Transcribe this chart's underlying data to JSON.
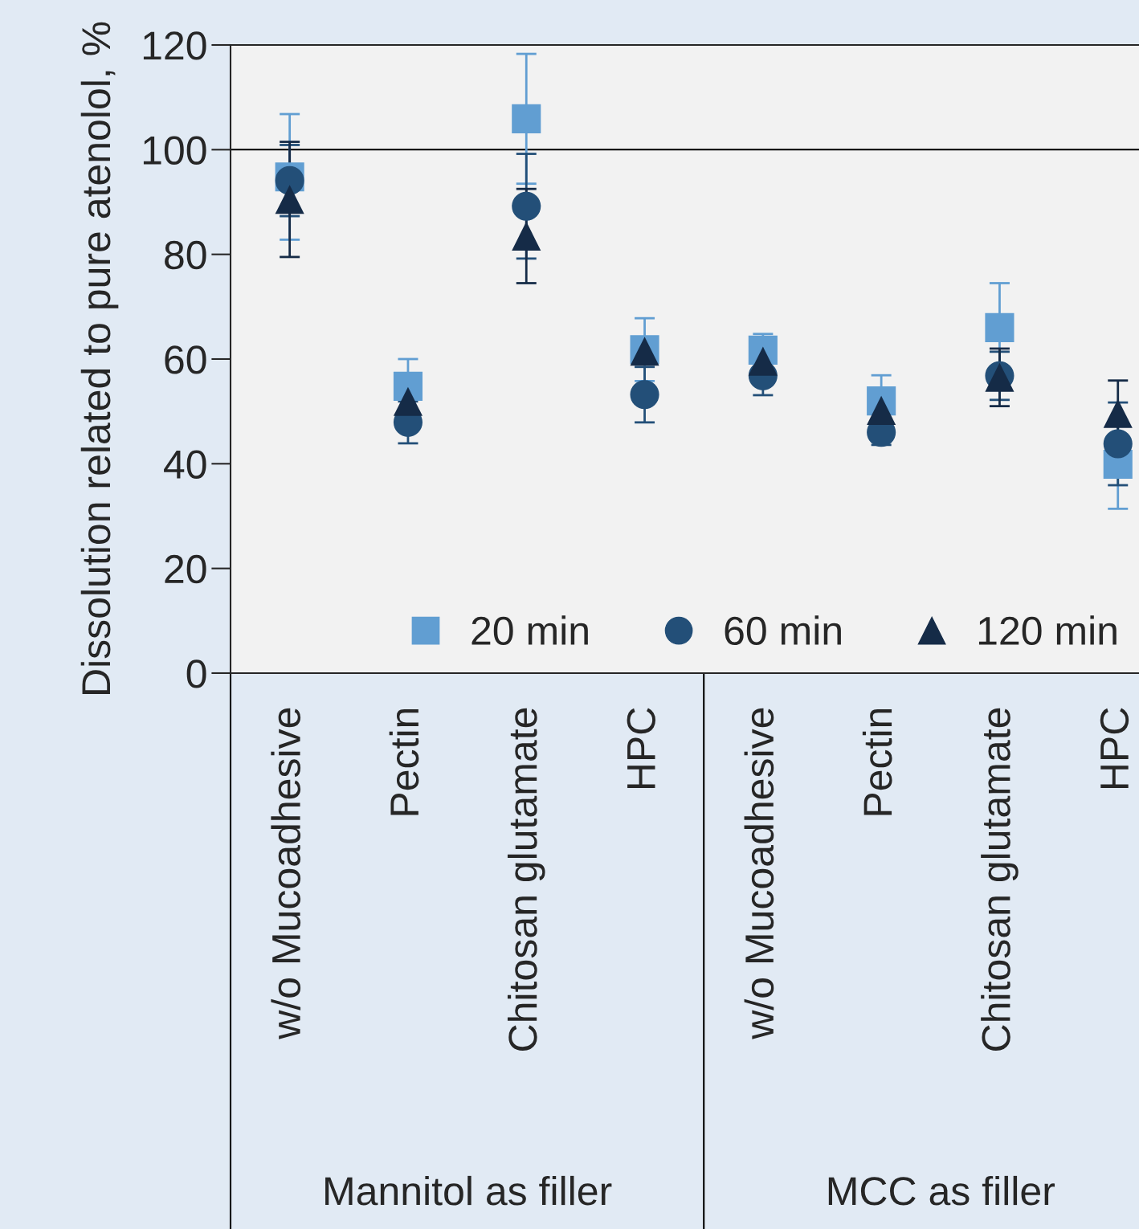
{
  "chart_data": {
    "type": "scatter",
    "ylabel": "Dissolution related to pure atenolol, %",
    "categories": [
      "w/o Mucoadhesive",
      "Pectin",
      "Chitosan glutamate",
      "HPC",
      "w/o Mucoadhesive",
      "Pectin",
      "Chitosan glutamate",
      "HPC"
    ],
    "series": [
      {
        "name": "20 min",
        "color": "#619ed2",
        "marker": "square",
        "values": [
          94.8,
          54.8,
          105.9,
          61.8,
          61.7,
          52.0,
          66.0,
          39.9
        ],
        "errors": [
          12,
          5.2,
          12.4,
          6,
          3.1,
          4.9,
          8.5,
          8.5
        ]
      },
      {
        "name": "60 min",
        "color": "#234f78",
        "marker": "circle",
        "values": [
          94.1,
          47.9,
          89.2,
          53.2,
          56.8,
          46.0,
          56.8,
          43.8
        ],
        "errors": [
          6.8,
          4,
          10,
          5.3,
          3.7,
          2.4,
          4.6,
          7.9
        ]
      },
      {
        "name": "120 min",
        "color": "#152b47",
        "marker": "triangle",
        "values": [
          90.5,
          51.9,
          83.5,
          61.5,
          59.6,
          50.2,
          56.5,
          49.6
        ],
        "errors": [
          11,
          null,
          9,
          null,
          null,
          null,
          5.5,
          6.3
        ]
      }
    ],
    "ylim": [
      0,
      120
    ],
    "yticks": [
      0,
      20,
      40,
      60,
      80,
      100,
      120
    ],
    "ref_lines": [
      {
        "axis": "y",
        "value": 100,
        "color": "#000000"
      }
    ],
    "annotations": [
      "Mannitol as filler",
      "MCC as filler"
    ],
    "legend": "bottom right",
    "grid": false
  }
}
